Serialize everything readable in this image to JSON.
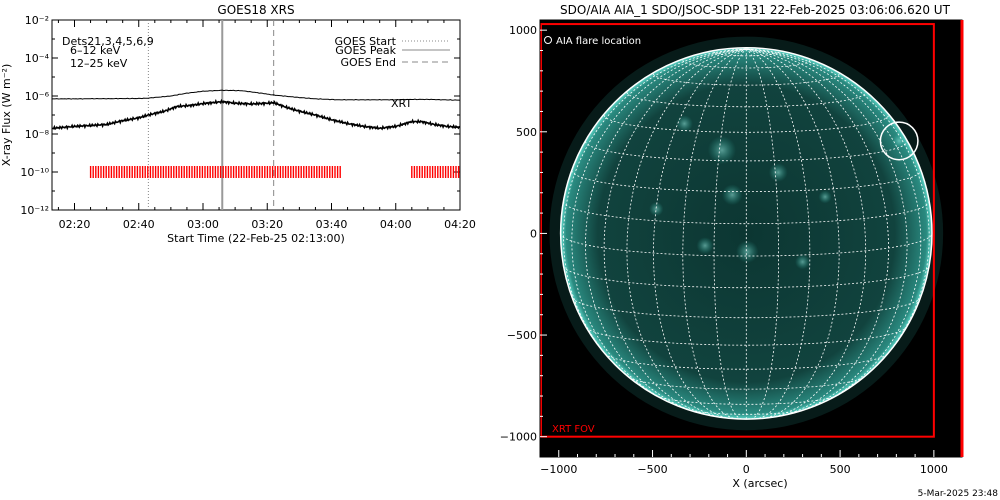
{
  "chart_data": [
    {
      "type": "line",
      "title": "GOES18 XRS",
      "xlabel": "Start Time (22-Feb-25 02:13:00)",
      "ylabel": "X-ray Flux (W m⁻²)",
      "y_log": true,
      "ylim_exp": [
        -12,
        -2
      ],
      "yticks": [
        {
          "exp": -12,
          "label": "10⁻¹²"
        },
        {
          "exp": -10,
          "label": "10⁻¹⁰"
        },
        {
          "exp": -8,
          "label": "10⁻⁸"
        },
        {
          "exp": -6,
          "label": "10⁻⁶"
        },
        {
          "exp": -4,
          "label": "10⁻⁴"
        },
        {
          "exp": -2,
          "label": "10⁻²"
        }
      ],
      "xlim_min": [
        133,
        260
      ],
      "xticks": [
        {
          "min": 140,
          "label": "02:20"
        },
        {
          "min": 160,
          "label": "02:40"
        },
        {
          "min": 180,
          "label": "03:00"
        },
        {
          "min": 200,
          "label": "03:20"
        },
        {
          "min": 220,
          "label": "03:40"
        },
        {
          "min": 240,
          "label": "04:00"
        },
        {
          "min": 260,
          "label": "04:20"
        }
      ],
      "dets_label": "Dets21,3,4,5,6,9",
      "energy_labels": [
        {
          "text": "6–12 keV",
          "color": "#ff00ff"
        },
        {
          "text": "12–25 keV",
          "color": "#00cc00"
        }
      ],
      "legend": [
        {
          "name": "GOES Start",
          "style": "dotted",
          "color": "#888888"
        },
        {
          "name": "GOES Peak",
          "style": "solid",
          "color": "#888888"
        },
        {
          "name": "GOES End",
          "style": "dashed",
          "color": "#888888"
        }
      ],
      "markers_min": {
        "start": 163,
        "peak": 186,
        "end": 202
      },
      "xrt_label": "XRT",
      "xrt_color": "#ff0000",
      "xrt_level_exp": -10,
      "xrt_intervals_min": [
        [
          145,
          223
        ],
        [
          245,
          260
        ]
      ],
      "series": [
        {
          "name": "long",
          "x_min": [
            133,
            140,
            150,
            160,
            163,
            170,
            175,
            180,
            186,
            192,
            198,
            202,
            208,
            215,
            222,
            228,
            235,
            240,
            245,
            250,
            255,
            260
          ],
          "log_flux": [
            -6.15,
            -6.15,
            -6.14,
            -6.13,
            -6.11,
            -6.0,
            -5.85,
            -5.75,
            -5.7,
            -5.72,
            -5.85,
            -5.95,
            -6.05,
            -6.15,
            -6.2,
            -6.2,
            -6.2,
            -6.2,
            -6.18,
            -6.18,
            -6.2,
            -6.22
          ]
        },
        {
          "name": "short",
          "x_min": [
            133,
            140,
            150,
            155,
            160,
            163,
            168,
            172,
            176,
            180,
            186,
            190,
            195,
            200,
            202,
            206,
            210,
            215,
            220,
            225,
            230,
            235,
            240,
            245,
            248,
            252,
            256,
            260
          ],
          "log_flux": [
            -7.7,
            -7.6,
            -7.5,
            -7.3,
            -7.15,
            -7.0,
            -6.8,
            -6.55,
            -6.5,
            -6.4,
            -6.3,
            -6.38,
            -6.42,
            -6.38,
            -6.35,
            -6.6,
            -6.8,
            -7.0,
            -7.25,
            -7.45,
            -7.6,
            -7.7,
            -7.6,
            -7.35,
            -7.35,
            -7.5,
            -7.6,
            -7.65
          ]
        }
      ]
    },
    {
      "type": "image",
      "title": "SDO/AIA AIA_1 SDO/JSOC-SDP 131 22-Feb-2025 03:06:06.620 UT",
      "xlabel": "X (arcsec)",
      "ylabel": "",
      "xlim": [
        -1100,
        1150
      ],
      "ylim": [
        -1100,
        1050
      ],
      "xticks": [
        -1000,
        -500,
        0,
        500,
        1000
      ],
      "yticks": [
        -1000,
        -500,
        0,
        500,
        1000
      ],
      "tick_labels": {
        "-1000": "−1000",
        "-500": "−500",
        "0": "0",
        "500": "500",
        "1000": "1000"
      },
      "sun_radius_arcsec": 990,
      "grid_step_deg": 10,
      "flare_label": "AIA flare location",
      "flare_xy": [
        815,
        455
      ],
      "flare_radius_arcsec": 100,
      "xrt_fov_label": "XRT FOV",
      "xrt_fov_box": [
        -1095,
        -1000,
        1000,
        1030
      ],
      "xrt_color": "#ff0000",
      "disk_color": "#0e3a36",
      "bright_color": "#37d7c4"
    }
  ],
  "footer_date": "5-Mar-2025 23:48"
}
